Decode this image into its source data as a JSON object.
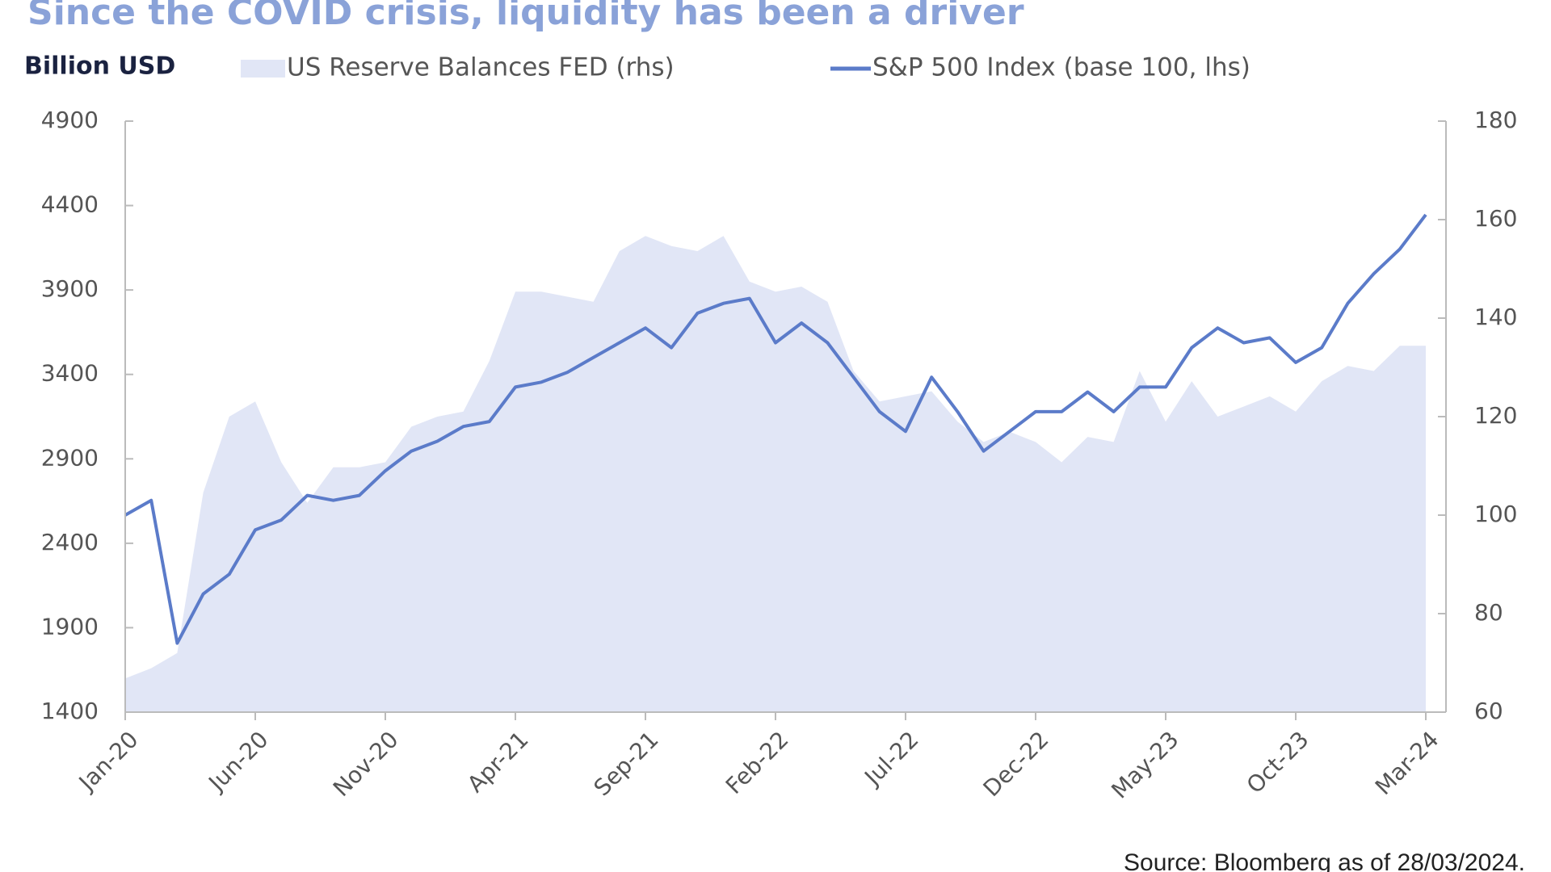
{
  "chart_data": {
    "type": "line",
    "title": "Since the COVID crisis, liquidity has been a driver",
    "y_axis_label": "Billion USD",
    "source": "Source: Bloomberg as of 28/03/2024.",
    "categories": [
      "Jan-20",
      null,
      null,
      null,
      null,
      "Jun-20",
      null,
      null,
      null,
      null,
      "Nov-20",
      null,
      null,
      null,
      null,
      "Apr-21",
      null,
      null,
      null,
      null,
      "Sep-21",
      null,
      null,
      null,
      null,
      "Feb-22",
      null,
      null,
      null,
      null,
      "Jul-22",
      null,
      null,
      null,
      null,
      "Dec-22",
      null,
      null,
      null,
      null,
      "May-23",
      null,
      null,
      null,
      null,
      "Oct-23",
      null,
      null,
      null,
      null,
      "Mar-24"
    ],
    "series": [
      {
        "name": "US Reserve Balances FED (rhs)",
        "kind": "area",
        "color": "#e1e6f6",
        "values": [
          1600,
          1660,
          1750,
          2700,
          3150,
          3240,
          2880,
          2640,
          2850,
          2850,
          2880,
          3090,
          3150,
          3180,
          3480,
          3890,
          3890,
          3860,
          3830,
          4130,
          4220,
          4160,
          4130,
          4220,
          3950,
          3890,
          3920,
          3830,
          3420,
          3240,
          3270,
          3300,
          3120,
          3000,
          3060,
          3000,
          2880,
          3030,
          3000,
          3420,
          3120,
          3360,
          3150,
          3210,
          3270,
          3180,
          3360,
          3450,
          3420,
          3570,
          3570
        ]
      },
      {
        "name": "S&P 500 Index (base 100, lhs)",
        "kind": "line",
        "color": "#5b7bc9",
        "axis": "y2",
        "values": [
          100,
          103,
          74,
          84,
          88,
          97,
          99,
          104,
          103,
          104,
          109,
          113,
          115,
          118,
          119,
          126,
          127,
          129,
          132,
          135,
          138,
          134,
          141,
          143,
          144,
          135,
          139,
          135,
          128,
          121,
          117,
          128,
          121,
          113,
          117,
          121,
          121,
          125,
          121,
          126,
          126,
          134,
          138,
          135,
          136,
          131,
          134,
          143,
          149,
          154,
          161
        ]
      }
    ],
    "ylim": [
      1400,
      4900
    ],
    "yticks": [
      1400,
      1900,
      2400,
      2900,
      3400,
      3900,
      4400,
      4900
    ],
    "y2lim": [
      60,
      180
    ],
    "y2ticks": [
      60,
      80,
      100,
      120,
      140,
      160,
      180
    ]
  }
}
